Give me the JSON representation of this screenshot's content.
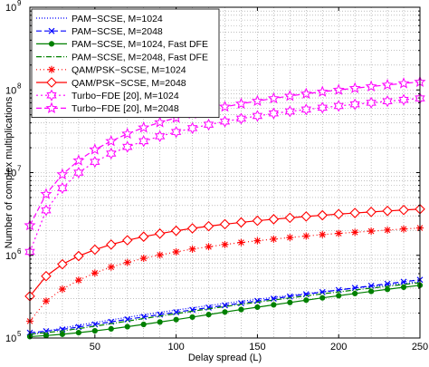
{
  "chart_data": {
    "type": "line",
    "xlabel": "Delay spread (L)",
    "ylabel": "Number of complex multiplications",
    "xlim": [
      10,
      250
    ],
    "ylim": [
      100000,
      1000000000
    ],
    "y_scale": "log",
    "grid": true,
    "legend_position": "top-left",
    "x_ticks": [
      50,
      100,
      150,
      200,
      250
    ],
    "x_tick_labels": [
      "50",
      "100",
      "150",
      "200",
      "250"
    ],
    "y_ticks": [
      {
        "value": 100000,
        "base": "10",
        "exp": "5"
      },
      {
        "value": 1000000,
        "base": "10",
        "exp": "6"
      },
      {
        "value": 10000000,
        "base": "10",
        "exp": "7"
      },
      {
        "value": 100000000,
        "base": "10",
        "exp": "8"
      },
      {
        "value": 1000000000,
        "base": "10",
        "exp": "9"
      }
    ],
    "x": [
      10,
      20,
      30,
      40,
      50,
      60,
      70,
      80,
      90,
      100,
      110,
      120,
      130,
      140,
      150,
      160,
      170,
      180,
      190,
      200,
      210,
      220,
      230,
      240,
      250
    ],
    "series": [
      {
        "name": "PAM−SCSE, M=1024",
        "color": "#0000ff",
        "dash": "1,2",
        "marker": "none",
        "values": [
          110000,
          121000,
          132000,
          143000,
          154000,
          166000,
          178000,
          191000,
          204000,
          218000,
          232000,
          247000,
          262000,
          278000,
          294000,
          311000,
          328000,
          345000,
          363000,
          381000,
          400000,
          419000,
          438000,
          458000,
          478000
        ]
      },
      {
        "name": "PAM−SCSE, M=2048",
        "color": "#0000ff",
        "dash": "6,3",
        "marker": "x",
        "values": [
          116000,
          121000,
          127000,
          136000,
          146000,
          157000,
          168000,
          180000,
          192000,
          205000,
          219000,
          233000,
          248000,
          264000,
          281000,
          299000,
          318000,
          338000,
          359000,
          381000,
          404000,
          428000,
          453000,
          479000,
          506000
        ]
      },
      {
        "name": "PAM−SCSE, M=1024, Fast DFE",
        "color": "#008000",
        "dash": "",
        "marker": "dot",
        "values": [
          104000,
          107000,
          111000,
          116000,
          122000,
          129000,
          137000,
          146000,
          156000,
          167000,
          179000,
          192000,
          206000,
          221000,
          236000,
          252000,
          269000,
          287000,
          306000,
          325000,
          345000,
          366000,
          388000,
          411000,
          434000
        ]
      },
      {
        "name": "PAM−SCSE, M=2048, Fast DFE",
        "color": "#008000",
        "dash": "6,2,1,2",
        "marker": "none",
        "values": [
          111000,
          116000,
          122000,
          130000,
          139000,
          149000,
          160000,
          172000,
          184000,
          197000,
          211000,
          225000,
          240000,
          255000,
          271000,
          288000,
          305000,
          323000,
          342000,
          361000,
          381000,
          401000,
          422000,
          444000,
          466000
        ]
      },
      {
        "name": "QAM/PSK−SCSE, M=1024",
        "color": "#ff0000",
        "dash": "1,3",
        "marker": "star",
        "values": [
          160000,
          280000,
          390000,
          500000,
          610000,
          720000,
          820000,
          920000,
          1010000,
          1100000,
          1190000,
          1270000,
          1350000,
          1430000,
          1500000,
          1570000,
          1640000,
          1710000,
          1780000,
          1840000,
          1900000,
          1960000,
          2020000,
          2080000,
          2140000
        ]
      },
      {
        "name": "QAM/PSK−SCSE, M=2048",
        "color": "#ff0000",
        "dash": "",
        "marker": "diamond",
        "values": [
          320000,
          560000,
          780000,
          980000,
          1170000,
          1350000,
          1520000,
          1680000,
          1830000,
          1980000,
          2120000,
          2250000,
          2380000,
          2500000,
          2620000,
          2730000,
          2840000,
          2950000,
          3050000,
          3150000,
          3250000,
          3350000,
          3440000,
          3530000,
          3620000
        ]
      },
      {
        "name": "Turbo−FDE [20], M=1024",
        "color": "#ff00ff",
        "dash": "2,3",
        "marker": "hexagram",
        "values": [
          1100000,
          3500000,
          6500000,
          10000000,
          13500000,
          17000000,
          20500000,
          24000000,
          27500000,
          31000000,
          34500000,
          38000000,
          41500000,
          45000000,
          48500000,
          52000000,
          55000000,
          58000000,
          61000000,
          64000000,
          67000000,
          70000000,
          73000000,
          76000000,
          79000000
        ]
      },
      {
        "name": "Turbo−FDE [20], M=2048",
        "color": "#ff00ff",
        "dash": "6,3",
        "marker": "star5",
        "values": [
          2300000,
          5500000,
          9500000,
          14000000,
          19000000,
          24000000,
          29500000,
          35000000,
          40500000,
          46000000,
          51500000,
          57000000,
          62500000,
          68000000,
          73500000,
          79000000,
          84500000,
          90000000,
          95000000,
          100000000,
          105000000,
          110000000,
          115000000,
          120000000,
          125000000
        ]
      }
    ]
  }
}
